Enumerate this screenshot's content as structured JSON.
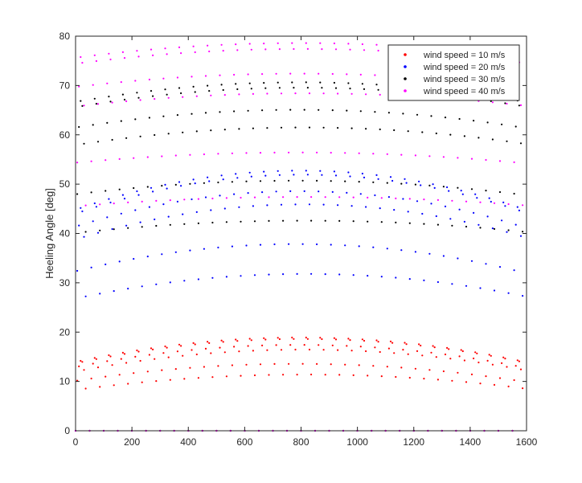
{
  "chart_data": {
    "type": "scatter",
    "title": "",
    "xlabel": "",
    "ylabel": "Heeling Angle [deg]",
    "xlim": [
      0,
      1600
    ],
    "ylim": [
      0,
      80
    ],
    "xticks": [
      0,
      200,
      400,
      600,
      800,
      1000,
      1200,
      1400,
      1600
    ],
    "yticks": [
      0,
      10,
      20,
      30,
      40,
      50,
      60,
      70,
      80
    ],
    "grid": false,
    "legend_position": "top-right",
    "series": [
      {
        "name": "wind speed = 10 m/s",
        "color": "#ff0000",
        "peak_deg": 19,
        "edge_deg": 14,
        "num_lobes": 32,
        "lobe_width": 40,
        "period": 50,
        "sample_step": 6
      },
      {
        "name": "wind speed = 20 m/s",
        "color": "#0000ff",
        "peak_deg": 53,
        "edge_deg": 45,
        "num_lobes": 32,
        "lobe_width": 40,
        "period": 50,
        "sample_step": 6
      },
      {
        "name": "wind speed = 30 m/s",
        "color": "#000000",
        "peak_deg": 71,
        "edge_deg": 67,
        "num_lobes": 32,
        "lobe_width": 40,
        "period": 50,
        "sample_step": 6
      },
      {
        "name": "wind speed = 40 m/s",
        "color": "#ff00ff",
        "peak_deg": 79,
        "edge_deg": 76,
        "num_lobes": 32,
        "lobe_width": 40,
        "period": 50,
        "sample_step": 6
      }
    ]
  }
}
